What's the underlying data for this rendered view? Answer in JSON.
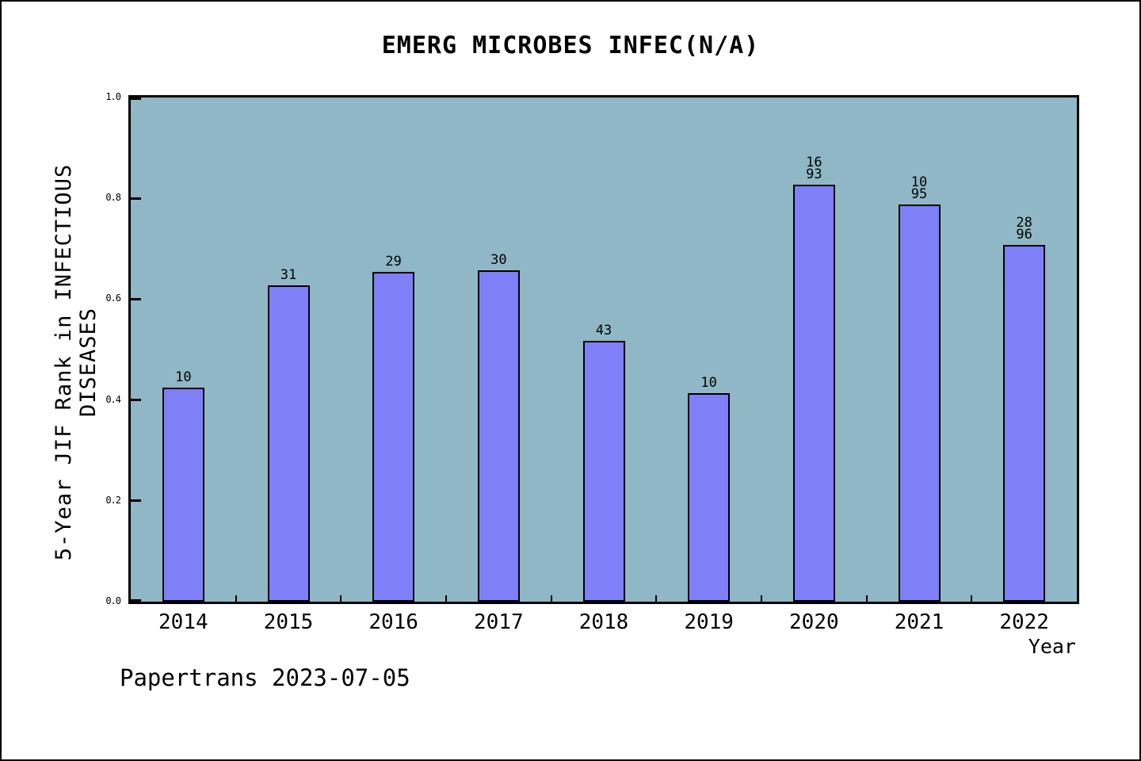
{
  "title": "EMERG MICROBES INFEC(N/A)",
  "footer": "Papertrans 2023-07-05",
  "chart_data": {
    "type": "bar",
    "title": "EMERG MICROBES INFEC(N/A)",
    "xlabel": "Year",
    "ylabel": "5-Year JIF Rank in INFECTIOUS DISEASES",
    "categories": [
      "2014",
      "2015",
      "2016",
      "2017",
      "2018",
      "2019",
      "2020",
      "2021",
      "2022"
    ],
    "values": [
      0.424,
      0.627,
      0.654,
      0.657,
      0.517,
      0.414,
      0.827,
      0.788,
      0.707
    ],
    "bar_labels": [
      "10",
      "31",
      "29",
      "30",
      "43",
      "10",
      "16\n93",
      "10\n95",
      "28\n96"
    ],
    "ylim": [
      0.0,
      1.0
    ],
    "yticks": [
      "0.0",
      "0.2",
      "0.4",
      "0.6",
      "0.8",
      "1.0"
    ],
    "grid": false,
    "legend": null,
    "layout": "single series, value labels above bars, ticks inside axes"
  },
  "colors": {
    "bar_fill": "#7f80f8",
    "bar_edge": "#000000",
    "plot_background": "#8fb7c6",
    "page_background": "#ffffff",
    "frame": "#000000",
    "text": "#000000"
  }
}
